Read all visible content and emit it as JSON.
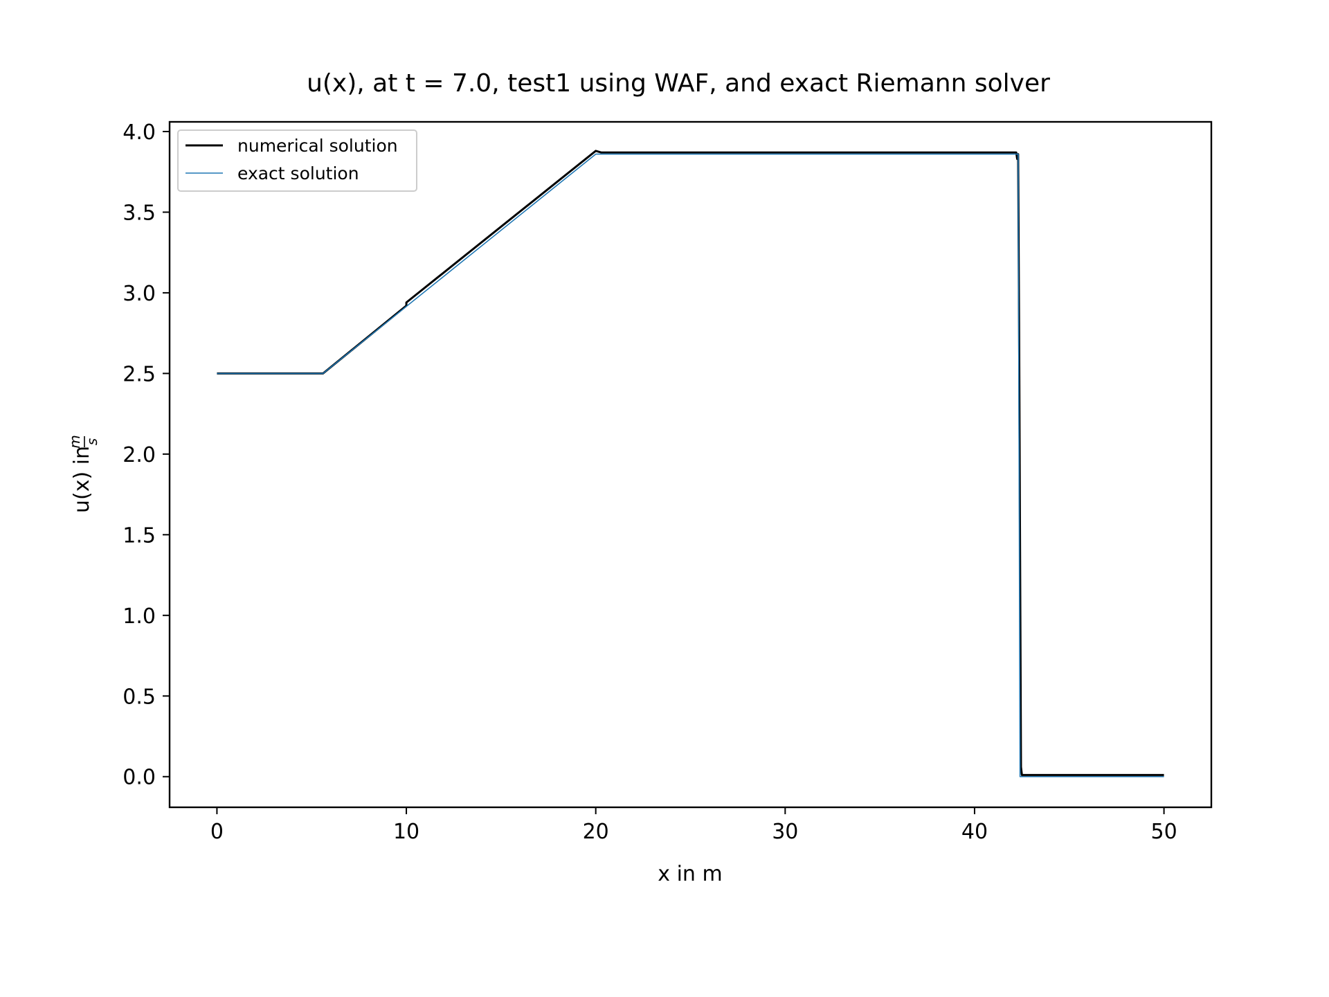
{
  "chart_data": {
    "type": "line",
    "title": "u(x), at t = 7.0, test1 using WAF, and exact Riemann solver",
    "xlabel": "x in m",
    "ylabel_prefix": "u(x) in ",
    "ylabel_unit_num": "m",
    "ylabel_unit_den": "s",
    "xlim": [
      -2.5,
      52.5
    ],
    "ylim": [
      -0.19,
      4.06
    ],
    "xticks": [
      0,
      10,
      20,
      30,
      40,
      50
    ],
    "xtick_labels": [
      "0",
      "10",
      "20",
      "30",
      "40",
      "50"
    ],
    "yticks": [
      0.0,
      0.5,
      1.0,
      1.5,
      2.0,
      2.5,
      3.0,
      3.5,
      4.0
    ],
    "ytick_labels": [
      "0.0",
      "0.5",
      "1.0",
      "1.5",
      "2.0",
      "2.5",
      "3.0",
      "3.5",
      "4.0"
    ],
    "grid": false,
    "legend_position": "upper-left",
    "series": [
      {
        "name": "numerical solution",
        "color": "#000000",
        "x": [
          0,
          5.6,
          10.0,
          10.0,
          20.0,
          20.3,
          42.2,
          42.25,
          42.3,
          42.35,
          42.45,
          42.5,
          50
        ],
        "y": [
          2.5,
          2.5,
          2.92,
          2.94,
          3.88,
          3.87,
          3.87,
          3.83,
          3.86,
          2.82,
          0.06,
          0.01,
          0.01
        ]
      },
      {
        "name": "exact solution",
        "color": "#1f77b4",
        "x": [
          0,
          5.6,
          20.0,
          42.3,
          42.4,
          50
        ],
        "y": [
          2.5,
          2.5,
          3.86,
          3.86,
          0.0,
          0.0
        ]
      }
    ]
  }
}
